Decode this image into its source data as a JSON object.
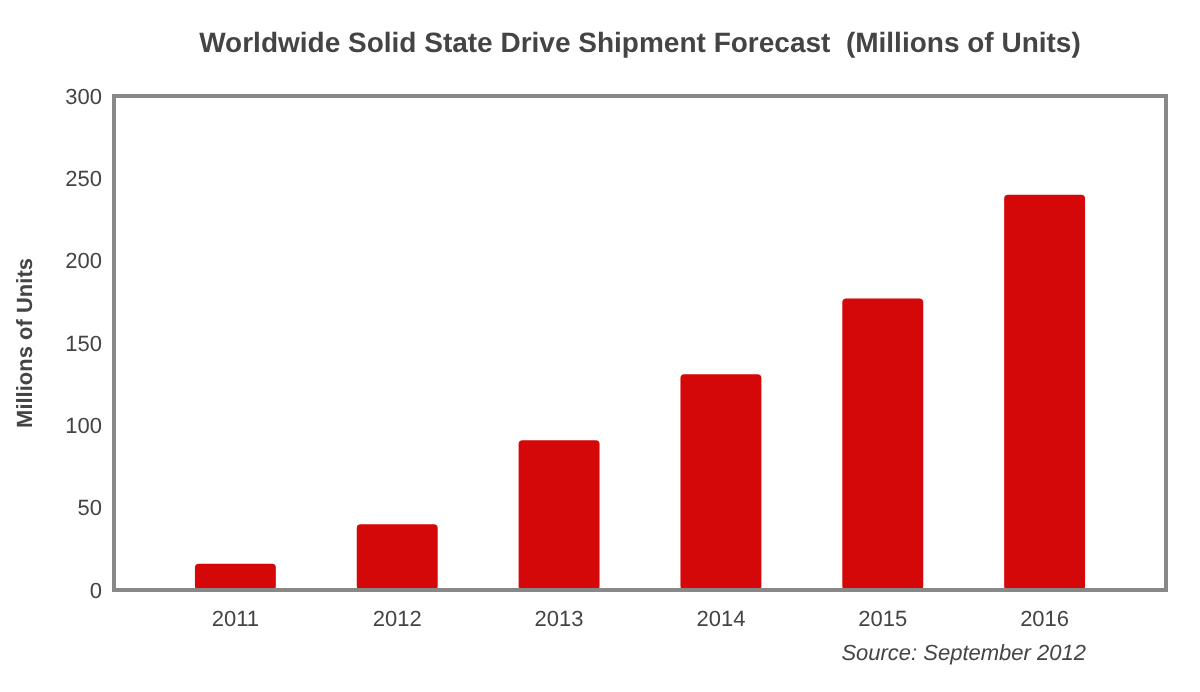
{
  "chart_data": {
    "type": "bar",
    "title": "Worldwide Solid State Drive Shipment Forecast  (Millions of Units)",
    "ylabel": "Millions of Units",
    "categories": [
      "2011",
      "2012",
      "2013",
      "2014",
      "2015",
      "2016"
    ],
    "values": [
      16,
      40,
      91,
      131,
      177,
      240
    ],
    "color": "#d40808",
    "ylim": [
      0,
      300
    ],
    "yticks": [
      0,
      50,
      100,
      150,
      200,
      250,
      300
    ],
    "grid": false,
    "annotations": [
      "Source: September 2012"
    ]
  }
}
